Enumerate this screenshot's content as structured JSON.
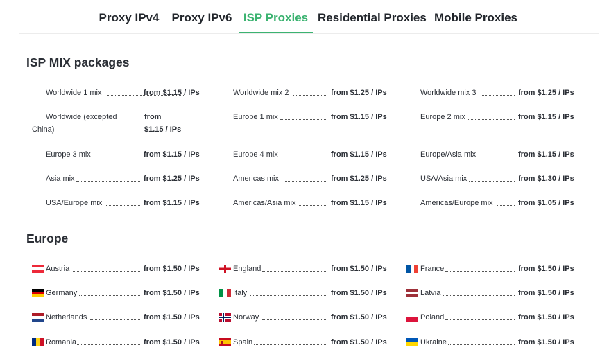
{
  "tabs": [
    {
      "label": "Proxy IPv4",
      "active": false
    },
    {
      "label": "Proxy IPv6",
      "active": false
    },
    {
      "label": "ISP Proxies",
      "active": true
    },
    {
      "label": "Residential Proxies",
      "active": false
    },
    {
      "label": "Mobile Proxies",
      "active": false
    }
  ],
  "accent_color": "#3cb371",
  "isp_section": {
    "title": "ISP MIX packages",
    "items": [
      {
        "name": "Worldwide 1 mix",
        "price": "from $1.15 / IPs"
      },
      {
        "name": "Worldwide mix 2",
        "price": "from $1.25 / IPs"
      },
      {
        "name": "Worldwide mix 3",
        "price": "from $1.25 / IPs"
      },
      {
        "name": "Worldwide (excepted China)",
        "name_line1": "Worldwide (excepted",
        "name_line2": "China)",
        "price": "from $1.15 / IPs",
        "price_line1": "from",
        "price_line2": "$1.15 / IPs"
      },
      {
        "name": "Europe 1 mix",
        "price": "from $1.15 / IPs"
      },
      {
        "name": "Europe 2 mix",
        "price": "from $1.15 / IPs"
      },
      {
        "name": "Europe 3 mix",
        "price": "from $1.15 / IPs"
      },
      {
        "name": "Europe 4 mix",
        "price": "from $1.15 / IPs"
      },
      {
        "name": "Europe/Asia mix",
        "price": "from $1.15 / IPs"
      },
      {
        "name": "Asia mix",
        "price": "from $1.25 / IPs"
      },
      {
        "name": "Americas mix",
        "price": "from $1.25 / IPs"
      },
      {
        "name": "USA/Asia mix",
        "price": "from $1.30 / IPs"
      },
      {
        "name": "USA/Europe mix",
        "price": "from $1.15 / IPs"
      },
      {
        "name": "Americas/Asia mix",
        "price": "from $1.15 / IPs"
      },
      {
        "name": "Americas/Europe mix",
        "price": "from $1.05 / IPs"
      }
    ]
  },
  "europe_section": {
    "title": "Europe",
    "items": [
      {
        "name": "Austria",
        "price": "from $1.50 / IPs",
        "flag": "austria-flag-icon"
      },
      {
        "name": "England",
        "price": "from $1.50 / IPs",
        "flag": "england-flag-icon"
      },
      {
        "name": "France",
        "price": "from $1.50 / IPs",
        "flag": "france-flag-icon"
      },
      {
        "name": "Germany",
        "price": "from $1.50 / IPs",
        "flag": "germany-flag-icon"
      },
      {
        "name": "Italy",
        "price": "from $1.50 / IPs",
        "flag": "italy-flag-icon"
      },
      {
        "name": "Latvia",
        "price": "from $1.50 / IPs",
        "flag": "latvia-flag-icon"
      },
      {
        "name": "Netherlands",
        "price": "from $1.50 / IPs",
        "flag": "netherlands-flag-icon"
      },
      {
        "name": "Norway",
        "price": "from $1.50 / IPs",
        "flag": "norway-flag-icon"
      },
      {
        "name": "Poland",
        "price": "from $1.50 / IPs",
        "flag": "poland-flag-icon"
      },
      {
        "name": "Romania",
        "price": "from $1.50 / IPs",
        "flag": "romania-flag-icon"
      },
      {
        "name": "Spain",
        "price": "from $1.50 / IPs",
        "flag": "spain-flag-icon"
      },
      {
        "name": "Ukraine",
        "price": "from $1.50 / IPs",
        "flag": "ukraine-flag-icon"
      }
    ]
  }
}
